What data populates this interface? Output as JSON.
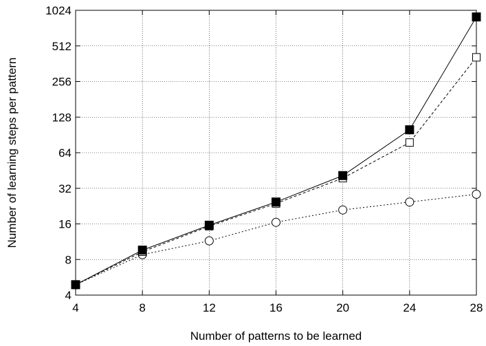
{
  "chart_data": {
    "type": "line",
    "title": "",
    "xlabel": "Number of patterns to be learned",
    "ylabel": "Number of learning steps per pattern",
    "xlim": [
      4,
      28
    ],
    "ylim": [
      4,
      1024
    ],
    "yscale": "log2",
    "grid": true,
    "x": [
      4,
      8,
      12,
      16,
      20,
      24,
      28
    ],
    "x_tick_labels": [
      "4",
      "8",
      "12",
      "16",
      "20",
      "24",
      "28"
    ],
    "y_ticks": [
      4,
      8,
      16,
      32,
      64,
      128,
      256,
      512,
      1024
    ],
    "y_tick_labels": [
      "4",
      "8",
      "16",
      "32",
      "64",
      "128",
      "256",
      "512",
      "1024"
    ],
    "series": [
      {
        "marker": "filled-square",
        "line": "solid",
        "color": "#000000",
        "values": [
          4.9,
          9.6,
          15.6,
          24.5,
          41,
          100,
          900
        ]
      },
      {
        "marker": "open-square",
        "line": "dashed",
        "color": "#000000",
        "values": [
          4.9,
          9.3,
          15.3,
          23.8,
          39,
          78,
          410
        ]
      },
      {
        "marker": "open-circle",
        "line": "dotted",
        "color": "#000000",
        "values": [
          4.9,
          8.8,
          11.5,
          16.5,
          21,
          24.5,
          28.5
        ]
      }
    ]
  }
}
